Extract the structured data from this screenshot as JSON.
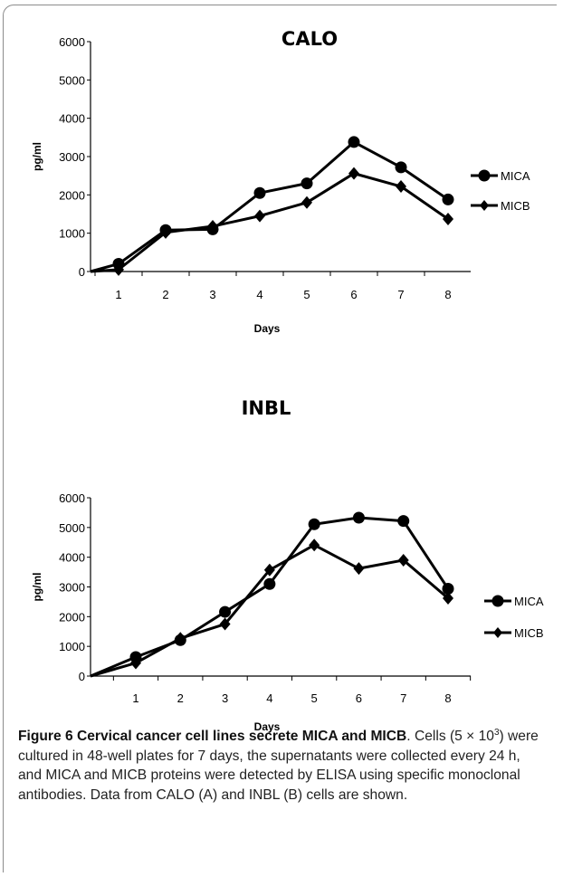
{
  "chart_data": [
    {
      "type": "line",
      "title": "CALO",
      "xlabel": "Days",
      "ylabel": "pg/ml",
      "ylim": [
        0,
        6000
      ],
      "yticks": [
        0,
        1000,
        2000,
        3000,
        4000,
        5000,
        6000
      ],
      "categories": [
        "1",
        "2",
        "3",
        "4",
        "5",
        "6",
        "7",
        "8"
      ],
      "legend_position": "right",
      "series": [
        {
          "name": "MICA",
          "marker": "circle",
          "values": [
            200,
            1080,
            1100,
            2050,
            2300,
            3380,
            2720,
            1880
          ]
        },
        {
          "name": "MICB",
          "marker": "diamond",
          "values": [
            50,
            1020,
            1180,
            1450,
            1800,
            2560,
            2220,
            1370
          ]
        }
      ]
    },
    {
      "type": "line",
      "title": "INBL",
      "xlabel": "Days",
      "ylabel": "pg/ml",
      "ylim": [
        0,
        6000
      ],
      "yticks": [
        0,
        1000,
        2000,
        3000,
        4000,
        5000,
        6000
      ],
      "categories": [
        "1",
        "2",
        "3",
        "4",
        "5",
        "6",
        "7",
        "8"
      ],
      "legend_position": "right",
      "series": [
        {
          "name": "MICA",
          "marker": "circle",
          "values": [
            640,
            1210,
            2160,
            3100,
            5110,
            5330,
            5220,
            2940
          ]
        },
        {
          "name": "MICB",
          "marker": "diamond",
          "values": [
            440,
            1270,
            1750,
            3570,
            4410,
            3620,
            3900,
            2620
          ]
        }
      ]
    }
  ],
  "caption": {
    "title": "Figure 6 Cervical cancer cell lines secrete MICA and MICB",
    "body_before_sup": ". Cells (5 × 10",
    "sup": "3",
    "body_after_sup": ") were cultured in 48-well plates for 7 days, the supernatants were collected every 24 h, and MICA and MICB proteins were detected by ELISA using specific monoclonal antibodies. Data from CALO (A) and INBL (B) cells are shown."
  }
}
